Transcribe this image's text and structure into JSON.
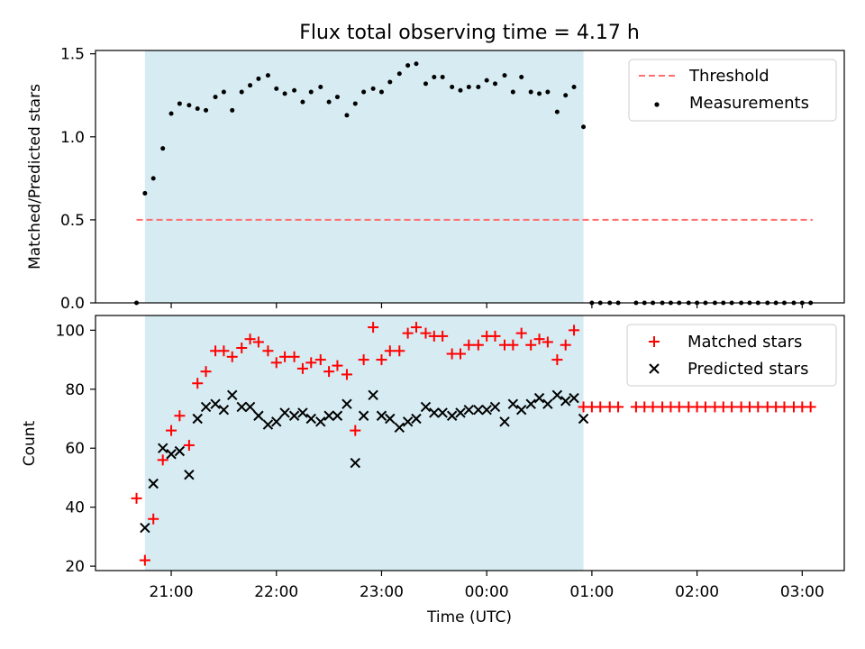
{
  "figure": {
    "title": "Flux total observing time = 4.17 h",
    "xlabel": "Time (UTC)",
    "x_ticks": [
      "21:00",
      "22:00",
      "23:00",
      "00:00",
      "01:00",
      "02:00",
      "03:00"
    ],
    "x_tick_hours": [
      21,
      22,
      23,
      24,
      25,
      26,
      27
    ],
    "xlim_hours": [
      20.28,
      27.4
    ],
    "observing_window_hours": [
      20.75,
      24.92
    ],
    "observing_window_color": "#add8e6"
  },
  "chart_data": [
    {
      "type": "scatter",
      "ylabel": "Matched/Predicted stars",
      "ylim": [
        0,
        1.52
      ],
      "y_ticks": [
        "0.0",
        "0.5",
        "1.0",
        "1.5"
      ],
      "y_tick_values": [
        0,
        0.5,
        1.0,
        1.5
      ],
      "legend": {
        "placement": "top-right",
        "entries": [
          "Threshold",
          "Measurements"
        ]
      },
      "threshold": {
        "name": "Threshold",
        "y": 0.5,
        "x_range_hours": [
          20.67,
          27.1
        ],
        "color": "#ff6f6f",
        "style": "dashed"
      },
      "series": [
        {
          "name": "Measurements",
          "color": "#000000",
          "x_hours": [
            20.67,
            20.75,
            20.83,
            20.92,
            21.0,
            21.08,
            21.17,
            21.25,
            21.33,
            21.42,
            21.5,
            21.58,
            21.67,
            21.75,
            21.83,
            21.92,
            22.0,
            22.08,
            22.17,
            22.25,
            22.33,
            22.42,
            22.5,
            22.58,
            22.67,
            22.75,
            22.83,
            22.92,
            23.0,
            23.08,
            23.17,
            23.25,
            23.33,
            23.42,
            23.5,
            23.58,
            23.67,
            23.75,
            23.83,
            23.92,
            24.0,
            24.08,
            24.17,
            24.25,
            24.33,
            24.42,
            24.5,
            24.58,
            24.67,
            24.75,
            24.83,
            24.92,
            25.0,
            25.08,
            25.17,
            25.25,
            25.42,
            25.5,
            25.58,
            25.67,
            25.75,
            25.83,
            25.92,
            26.0,
            26.08,
            26.17,
            26.25,
            26.33,
            26.42,
            26.5,
            26.58,
            26.67,
            26.75,
            26.83,
            26.92,
            27.0,
            27.08
          ],
          "y": [
            0,
            0.66,
            0.75,
            0.93,
            1.14,
            1.2,
            1.19,
            1.17,
            1.16,
            1.24,
            1.27,
            1.16,
            1.27,
            1.31,
            1.35,
            1.37,
            1.29,
            1.26,
            1.28,
            1.21,
            1.27,
            1.3,
            1.21,
            1.24,
            1.13,
            1.2,
            1.27,
            1.29,
            1.27,
            1.33,
            1.38,
            1.43,
            1.44,
            1.32,
            1.36,
            1.36,
            1.3,
            1.28,
            1.3,
            1.3,
            1.34,
            1.32,
            1.37,
            1.27,
            1.36,
            1.27,
            1.26,
            1.27,
            1.15,
            1.25,
            1.3,
            1.06,
            0,
            0,
            0,
            0,
            0,
            0,
            0,
            0,
            0,
            0,
            0,
            0,
            0,
            0,
            0,
            0,
            0,
            0,
            0,
            0,
            0,
            0,
            0,
            0,
            0
          ]
        }
      ]
    },
    {
      "type": "scatter",
      "ylabel": "Count",
      "ylim": [
        18.5,
        105
      ],
      "y_ticks": [
        "20",
        "40",
        "60",
        "80",
        "100"
      ],
      "y_tick_values": [
        20,
        40,
        60,
        80,
        100
      ],
      "legend": {
        "placement": "top-right",
        "entries": [
          "Matched stars",
          "Predicted stars"
        ]
      },
      "series": [
        {
          "name": "Matched stars",
          "marker": "plus",
          "color": "#ff0000",
          "x_hours": [
            20.67,
            20.75,
            20.83,
            20.92,
            21.0,
            21.08,
            21.17,
            21.25,
            21.33,
            21.42,
            21.5,
            21.58,
            21.67,
            21.75,
            21.83,
            21.92,
            22.0,
            22.08,
            22.17,
            22.25,
            22.33,
            22.42,
            22.5,
            22.58,
            22.67,
            22.75,
            22.83,
            22.92,
            23.0,
            23.08,
            23.17,
            23.25,
            23.33,
            23.42,
            23.5,
            23.58,
            23.67,
            23.75,
            23.83,
            23.92,
            24.0,
            24.08,
            24.17,
            24.25,
            24.33,
            24.42,
            24.5,
            24.58,
            24.67,
            24.75,
            24.83,
            24.92,
            25.0,
            25.08,
            25.17,
            25.25,
            25.42,
            25.5,
            25.58,
            25.67,
            25.75,
            25.83,
            25.92,
            26.0,
            26.08,
            26.17,
            26.25,
            26.33,
            26.42,
            26.5,
            26.58,
            26.67,
            26.75,
            26.83,
            26.92,
            27.0,
            27.08
          ],
          "y": [
            43,
            22,
            36,
            56,
            66,
            71,
            61,
            82,
            86,
            93,
            93,
            91,
            94,
            97,
            96,
            93,
            89,
            91,
            91,
            87,
            89,
            90,
            86,
            88,
            85,
            66,
            90,
            101,
            90,
            93,
            93,
            99,
            101,
            99,
            98,
            98,
            92,
            92,
            95,
            95,
            98,
            98,
            95,
            95,
            99,
            95,
            97,
            96,
            90,
            95,
            100,
            74,
            74,
            74,
            74,
            74,
            74,
            74,
            74,
            74,
            74,
            74,
            74,
            74,
            74,
            74,
            74,
            74,
            74,
            74,
            74,
            74,
            74,
            74,
            74,
            74,
            74
          ]
        },
        {
          "name": "Predicted stars",
          "marker": "x",
          "color": "#000000",
          "x_hours": [
            20.75,
            20.83,
            20.92,
            21.0,
            21.08,
            21.17,
            21.25,
            21.33,
            21.42,
            21.5,
            21.58,
            21.67,
            21.75,
            21.83,
            21.92,
            22.0,
            22.08,
            22.17,
            22.25,
            22.33,
            22.42,
            22.5,
            22.58,
            22.67,
            22.75,
            22.83,
            22.92,
            23.0,
            23.08,
            23.17,
            23.25,
            23.33,
            23.42,
            23.5,
            23.58,
            23.67,
            23.75,
            23.83,
            23.92,
            24.0,
            24.08,
            24.17,
            24.25,
            24.33,
            24.42,
            24.5,
            24.58,
            24.67,
            24.75,
            24.83,
            24.92
          ],
          "y": [
            33,
            48,
            60,
            58,
            59,
            51,
            70,
            74,
            75,
            73,
            78,
            74,
            74,
            71,
            68,
            69,
            72,
            71,
            72,
            70,
            69,
            71,
            71,
            75,
            55,
            71,
            78,
            71,
            70,
            67,
            69,
            70,
            74,
            72,
            72,
            71,
            72,
            73,
            73,
            73,
            74,
            69,
            75,
            73,
            75,
            77,
            75,
            78,
            76,
            77,
            70
          ]
        }
      ]
    }
  ]
}
